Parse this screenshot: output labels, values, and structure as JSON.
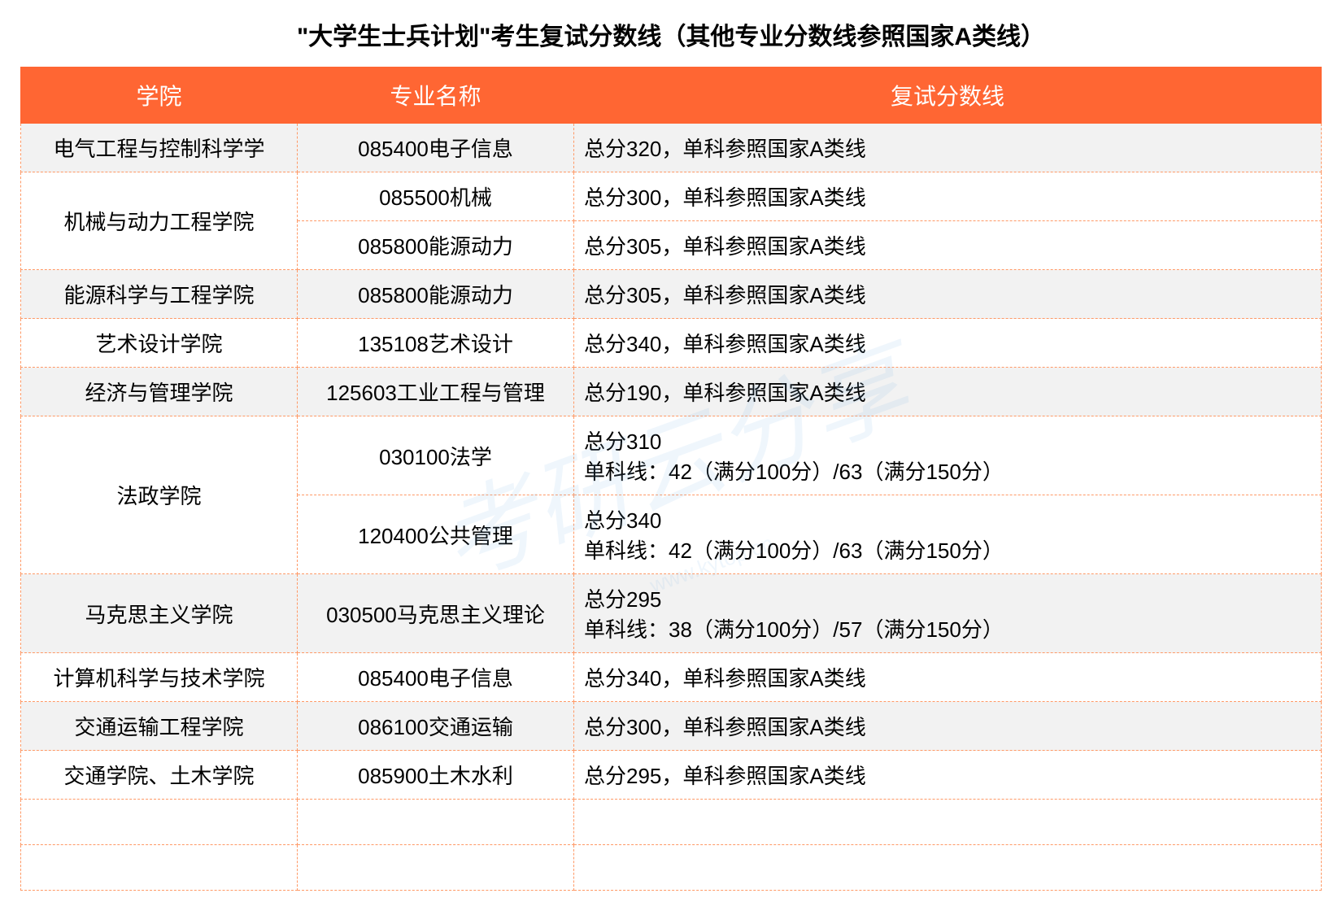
{
  "title": "\"大学生士兵计划\"考生复试分数线（其他专业分数线参照国家A类线）",
  "header": {
    "col1": "学院",
    "col2": "专业名称",
    "col3": "复试分数线"
  },
  "rows": [
    {
      "college": "电气工程与控制科学学",
      "major": "085400电子信息",
      "score": "总分320，单科参照国家A类线",
      "alt": true,
      "rowspan": 1
    },
    {
      "college": "机械与动力工程学院",
      "major": "085500机械",
      "score": "总分300，单科参照国家A类线",
      "alt": false,
      "rowspan": 2
    },
    {
      "college": "",
      "major": "085800能源动力",
      "score": "总分305，单科参照国家A类线",
      "alt": false,
      "rowspan": 0
    },
    {
      "college": "能源科学与工程学院",
      "major": "085800能源动力",
      "score": "总分305，单科参照国家A类线",
      "alt": true,
      "rowspan": 1
    },
    {
      "college": "艺术设计学院",
      "major": "135108艺术设计",
      "score": "总分340，单科参照国家A类线",
      "alt": false,
      "rowspan": 1
    },
    {
      "college": "经济与管理学院",
      "major": "125603工业工程与管理",
      "score": "总分190，单科参照国家A类线",
      "alt": true,
      "rowspan": 1
    },
    {
      "college": "法政学院",
      "major": "030100法学",
      "score": "总分310\n单科线：42（满分100分）/63（满分150分）",
      "alt": false,
      "rowspan": 2
    },
    {
      "college": "",
      "major": "120400公共管理",
      "score": "总分340\n单科线：42（满分100分）/63（满分150分）",
      "alt": false,
      "rowspan": 0
    },
    {
      "college": "马克思主义学院",
      "major": "030500马克思主义理论",
      "score": "总分295\n单科线：38（满分100分）/57（满分150分）",
      "alt": true,
      "rowspan": 1
    },
    {
      "college": "计算机科学与技术学院",
      "major": "085400电子信息",
      "score": "总分340，单科参照国家A类线",
      "alt": false,
      "rowspan": 1
    },
    {
      "college": "交通运输工程学院",
      "major": "086100交通运输",
      "score": "总分300，单科参照国家A类线",
      "alt": true,
      "rowspan": 1
    },
    {
      "college": "交通学院、土木学院",
      "major": "085900土木水利",
      "score": "总分295，单科参照国家A类线",
      "alt": false,
      "rowspan": 1
    }
  ],
  "empty_rows": 2,
  "watermark": "考研云分享",
  "watermark_sub": "www.kytop.cn",
  "colors": {
    "header_bg": "#ff6633",
    "header_text": "#ffffff",
    "border": "#ff9966",
    "alt_row": "#f2f2f2",
    "text": "#000000",
    "watermark": "rgba(120,180,230,0.12)"
  },
  "fonts": {
    "title_size": 30,
    "header_size": 28,
    "cell_size": 26
  }
}
